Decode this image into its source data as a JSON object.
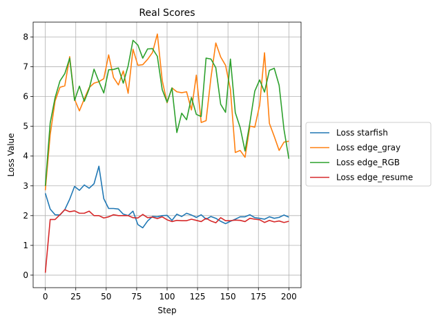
{
  "chart_data": {
    "type": "line",
    "title": "Real Scores",
    "xlabel": "Step",
    "ylabel": "Loss Value",
    "xlim": [
      -10,
      210
    ],
    "ylim": [
      -0.42,
      8.5
    ],
    "xticks": [
      0,
      25,
      50,
      75,
      100,
      125,
      150,
      175,
      200
    ],
    "yticks": [
      0,
      1,
      2,
      3,
      4,
      5,
      6,
      7,
      8
    ],
    "grid": true,
    "legend_position": "outside-right",
    "x": [
      0,
      4,
      8,
      12,
      16,
      20,
      24,
      28,
      32,
      36,
      40,
      44,
      48,
      52,
      56,
      60,
      64,
      68,
      72,
      76,
      80,
      84,
      88,
      92,
      96,
      100,
      104,
      108,
      112,
      116,
      120,
      124,
      128,
      132,
      136,
      140,
      144,
      148,
      152,
      156,
      160,
      164,
      168,
      172,
      176,
      180,
      184,
      188,
      192,
      196,
      200
    ],
    "series": [
      {
        "name": "Loss starfish",
        "color": "#1f77b4",
        "values": [
          2.75,
          2.22,
          2.03,
          2.02,
          2.2,
          2.55,
          2.98,
          2.85,
          3.03,
          2.92,
          3.07,
          3.66,
          2.57,
          2.24,
          2.24,
          2.22,
          2.05,
          2.0,
          2.15,
          1.7,
          1.59,
          1.82,
          1.97,
          1.96,
          2.0,
          2.01,
          1.84,
          2.05,
          1.97,
          2.08,
          2.02,
          1.94,
          2.03,
          1.88,
          1.97,
          1.91,
          1.81,
          1.73,
          1.81,
          1.88,
          1.96,
          1.96,
          2.03,
          1.93,
          1.91,
          1.88,
          1.96,
          1.91,
          1.94,
          2.02,
          1.95
        ]
      },
      {
        "name": "Loss edge_gray",
        "color": "#ff7f0e",
        "values": [
          2.85,
          4.72,
          5.85,
          6.31,
          6.36,
          7.34,
          5.91,
          5.52,
          5.92,
          6.3,
          6.45,
          6.5,
          6.6,
          7.4,
          6.64,
          6.39,
          6.86,
          6.11,
          7.59,
          7.05,
          7.07,
          7.25,
          7.48,
          8.1,
          6.54,
          5.79,
          6.29,
          6.16,
          6.13,
          6.16,
          5.55,
          6.72,
          5.13,
          5.19,
          6.63,
          7.8,
          7.33,
          7.05,
          6.24,
          4.12,
          4.19,
          3.96,
          5.01,
          4.97,
          5.71,
          7.47,
          5.1,
          4.66,
          4.19,
          4.47,
          4.5
        ]
      },
      {
        "name": "Loss edge_RGB",
        "color": "#2ca02c",
        "values": [
          3.0,
          5.11,
          5.96,
          6.52,
          6.77,
          7.29,
          5.87,
          6.35,
          5.84,
          6.26,
          6.92,
          6.5,
          6.12,
          6.9,
          6.91,
          6.96,
          6.45,
          7.03,
          7.89,
          7.73,
          7.29,
          7.6,
          7.61,
          7.35,
          6.23,
          5.81,
          6.29,
          4.79,
          5.44,
          5.22,
          5.97,
          5.4,
          5.33,
          7.29,
          7.26,
          6.97,
          5.74,
          5.47,
          7.26,
          5.46,
          4.96,
          4.17,
          5.12,
          6.18,
          6.56,
          6.15,
          6.88,
          6.95,
          6.38,
          4.89,
          3.91
        ]
      },
      {
        "name": "Loss edge_resume",
        "color": "#d62728",
        "values": [
          0.08,
          1.87,
          1.87,
          2.03,
          2.2,
          2.13,
          2.16,
          2.08,
          2.08,
          2.15,
          2.0,
          2.0,
          1.92,
          1.96,
          2.03,
          2.0,
          2.0,
          2.0,
          1.93,
          1.92,
          2.04,
          1.93,
          1.95,
          1.9,
          1.96,
          1.86,
          1.8,
          1.84,
          1.83,
          1.83,
          1.88,
          1.84,
          1.8,
          1.91,
          1.82,
          1.76,
          1.93,
          1.83,
          1.83,
          1.85,
          1.84,
          1.8,
          1.91,
          1.88,
          1.86,
          1.77,
          1.84,
          1.79,
          1.82,
          1.77,
          1.81
        ]
      }
    ]
  }
}
